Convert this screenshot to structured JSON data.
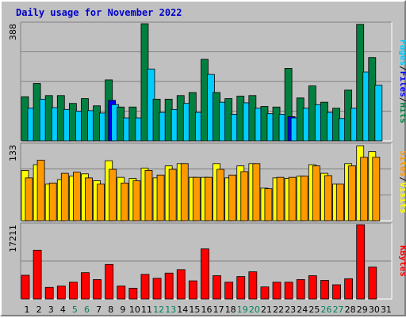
{
  "title": "Daily usage for November 2022",
  "chart_data": [
    {
      "type": "bar",
      "panel": "hits-files-pages",
      "ymax_label": "388",
      "ylim": [
        0,
        388
      ],
      "categories": [
        "1",
        "2",
        "3",
        "4",
        "5",
        "6",
        "7",
        "8",
        "9",
        "10",
        "11",
        "12",
        "13",
        "14",
        "15",
        "16",
        "17",
        "18",
        "19",
        "20",
        "21",
        "22",
        "23",
        "24",
        "25",
        "26",
        "27",
        "28",
        "29",
        "30",
        "31"
      ],
      "weekend_days": [
        "5",
        "6",
        "12",
        "13",
        "19",
        "20",
        "26",
        "27"
      ],
      "side_label": [
        "Pages",
        "Files",
        "Hits"
      ],
      "series": [
        {
          "name": "Hits",
          "color": "#008040",
          "values": [
            146,
            190,
            150,
            150,
            124,
            140,
            116,
            202,
            112,
            112,
            388,
            138,
            138,
            150,
            160,
            270,
            160,
            140,
            148,
            150,
            114,
            112,
            240,
            142,
            182,
            128,
            108,
            168,
            386,
            276,
            null
          ]
        },
        {
          "name": "Files",
          "color": "#0000ff",
          "values": [
            null,
            null,
            null,
            null,
            null,
            null,
            null,
            134,
            null,
            null,
            null,
            null,
            null,
            null,
            null,
            null,
            null,
            null,
            null,
            null,
            null,
            null,
            80,
            null,
            null,
            null,
            null,
            null,
            null,
            null,
            null
          ]
        },
        {
          "name": "Pages",
          "color": "#00ccff",
          "values": [
            108,
            138,
            110,
            104,
            98,
            100,
            92,
            120,
            76,
            76,
            238,
            94,
            104,
            124,
            94,
            220,
            128,
            88,
            126,
            108,
            90,
            88,
            76,
            108,
            120,
            94,
            74,
            108,
            228,
            184,
            null
          ]
        }
      ]
    },
    {
      "type": "bar",
      "panel": "visits-sites",
      "ymax_label": "133",
      "ylim": [
        0,
        133
      ],
      "categories": [
        "1",
        "2",
        "3",
        "4",
        "5",
        "6",
        "7",
        "8",
        "9",
        "10",
        "11",
        "12",
        "13",
        "14",
        "15",
        "16",
        "17",
        "18",
        "19",
        "20",
        "21",
        "22",
        "23",
        "24",
        "25",
        "26",
        "27",
        "28",
        "29",
        "30",
        "31"
      ],
      "weekend_days": [
        "5",
        "6",
        "12",
        "13",
        "19",
        "20",
        "26",
        "27"
      ],
      "side_label": [
        "Sites",
        "Visits"
      ],
      "series": [
        {
          "name": "Visits",
          "color": "#ffff00",
          "values": [
            88,
            98,
            64,
            72,
            78,
            82,
            70,
            105,
            76,
            74,
            92,
            75,
            96,
            100,
            76,
            76,
            100,
            75,
            96,
            100,
            57,
            75,
            74,
            78,
            98,
            83,
            64,
            100,
            131,
            121,
            null
          ]
        },
        {
          "name": "Sites",
          "color": "#ff9900",
          "values": [
            75,
            106,
            66,
            83,
            85,
            75,
            64,
            90,
            66,
            70,
            88,
            80,
            90,
            100,
            76,
            76,
            90,
            80,
            86,
            100,
            56,
            76,
            76,
            78,
            96,
            79,
            64,
            96,
            111,
            111,
            null
          ]
        }
      ]
    },
    {
      "type": "bar",
      "panel": "kbytes",
      "ymax_label": "17211",
      "ylim": [
        0,
        17211
      ],
      "categories": [
        "1",
        "2",
        "3",
        "4",
        "5",
        "6",
        "7",
        "8",
        "9",
        "10",
        "11",
        "12",
        "13",
        "14",
        "15",
        "16",
        "17",
        "18",
        "19",
        "20",
        "21",
        "22",
        "23",
        "24",
        "25",
        "26",
        "27",
        "28",
        "29",
        "30",
        "31"
      ],
      "weekend_days": [
        "5",
        "6",
        "12",
        "13",
        "19",
        "20",
        "26",
        "27"
      ],
      "side_label": [
        "KBytes"
      ],
      "series": [
        {
          "name": "KBytes",
          "color": "#ff0000",
          "values": [
            5500,
            11300,
            2700,
            3000,
            3900,
            6100,
            4500,
            8000,
            3000,
            2500,
            5700,
            4800,
            6000,
            6800,
            4200,
            11600,
            5400,
            3900,
            5200,
            6300,
            2800,
            3900,
            3900,
            4500,
            5400,
            4300,
            3300,
            4700,
            17211,
            7400,
            null
          ]
        }
      ]
    }
  ]
}
